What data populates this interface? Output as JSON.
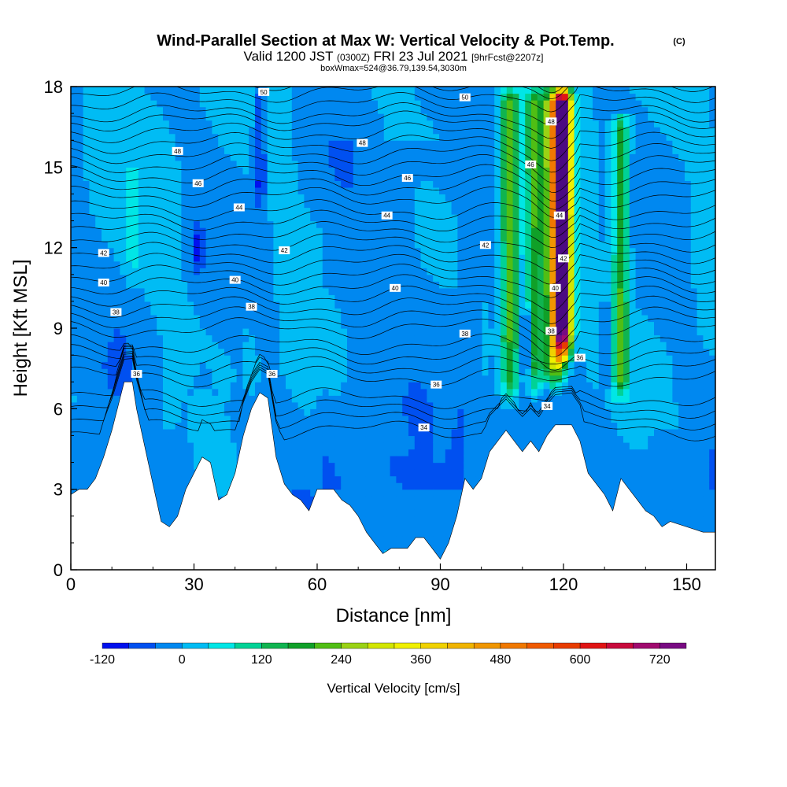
{
  "header": {
    "title": "Wind-Parallel Section at Max W: Vertical Velocity & Pot.Temp.",
    "copyright": "(C)",
    "valid_main": "Valid 1200 JST",
    "valid_z": "(0300Z)",
    "valid_date": "FRI 23 Jul 2021",
    "forecast": "[9hrFcst@2207z]",
    "box_info": "boxWmax=524@36.79,139.54,3030m"
  },
  "chart_data": {
    "type": "heatmap",
    "xlabel": "Distance [nm]",
    "ylabel": "Height [Kft MSL]",
    "xlim": [
      0,
      157
    ],
    "ylim": [
      0,
      18
    ],
    "x_ticks": [
      0,
      30,
      60,
      90,
      120,
      150
    ],
    "y_ticks": [
      0,
      3,
      6,
      9,
      12,
      15,
      18
    ],
    "colorbar": {
      "label": "Vertical Velocity [cm/s]",
      "tick_values": [
        -120,
        0,
        120,
        240,
        360,
        480,
        600,
        720
      ],
      "tick_labels": [
        "-120",
        "0",
        "120",
        "240",
        "360",
        "480",
        "600",
        "720"
      ],
      "levels": [
        -120,
        -80,
        -40,
        0,
        40,
        80,
        120,
        160,
        200,
        240,
        280,
        320,
        360,
        400,
        440,
        480,
        520,
        560,
        600,
        640,
        680,
        720,
        760
      ],
      "colors": [
        "#0010ee",
        "#0050f0",
        "#0088f0",
        "#00bcf4",
        "#00e6e6",
        "#00d296",
        "#10b450",
        "#10a028",
        "#50be14",
        "#9ad214",
        "#d2e600",
        "#f0f000",
        "#f0d200",
        "#f0b400",
        "#f09600",
        "#f07800",
        "#f05a00",
        "#e83c00",
        "#e01414",
        "#c80a3c",
        "#a00a6e",
        "#780a82",
        "#4b0a82"
      ]
    },
    "terrain_kft": [
      [
        0,
        2.8
      ],
      [
        2,
        3.0
      ],
      [
        4,
        3.0
      ],
      [
        6,
        3.4
      ],
      [
        8,
        4.2
      ],
      [
        10,
        5.2
      ],
      [
        12,
        6.4
      ],
      [
        13,
        7.0
      ],
      [
        15,
        7.0
      ],
      [
        16,
        6.0
      ],
      [
        18,
        4.6
      ],
      [
        20,
        3.2
      ],
      [
        22,
        1.8
      ],
      [
        24,
        1.6
      ],
      [
        26,
        2.0
      ],
      [
        28,
        3.0
      ],
      [
        30,
        3.6
      ],
      [
        32,
        4.2
      ],
      [
        34,
        4.0
      ],
      [
        36,
        2.6
      ],
      [
        38,
        2.8
      ],
      [
        40,
        3.6
      ],
      [
        42,
        5.0
      ],
      [
        44,
        6.0
      ],
      [
        46,
        6.6
      ],
      [
        48,
        6.4
      ],
      [
        50,
        4.2
      ],
      [
        52,
        3.2
      ],
      [
        54,
        2.8
      ],
      [
        56,
        2.6
      ],
      [
        58,
        2.2
      ],
      [
        60,
        3.0
      ],
      [
        62,
        3.0
      ],
      [
        64,
        3.0
      ],
      [
        66,
        2.6
      ],
      [
        68,
        2.4
      ],
      [
        70,
        2.0
      ],
      [
        72,
        1.4
      ],
      [
        74,
        1.0
      ],
      [
        76,
        0.6
      ],
      [
        78,
        0.8
      ],
      [
        82,
        0.8
      ],
      [
        84,
        1.2
      ],
      [
        86,
        1.2
      ],
      [
        88,
        0.8
      ],
      [
        90,
        0.4
      ],
      [
        92,
        1.0
      ],
      [
        94,
        2.0
      ],
      [
        96,
        3.4
      ],
      [
        98,
        3.0
      ],
      [
        100,
        3.4
      ],
      [
        102,
        4.4
      ],
      [
        104,
        4.8
      ],
      [
        106,
        5.2
      ],
      [
        108,
        4.8
      ],
      [
        110,
        4.4
      ],
      [
        112,
        4.8
      ],
      [
        114,
        4.4
      ],
      [
        116,
        5.0
      ],
      [
        118,
        5.4
      ],
      [
        122,
        5.4
      ],
      [
        124,
        4.8
      ],
      [
        126,
        3.6
      ],
      [
        128,
        3.2
      ],
      [
        130,
        2.8
      ],
      [
        132,
        2.2
      ],
      [
        134,
        3.4
      ],
      [
        136,
        3.0
      ],
      [
        138,
        2.6
      ],
      [
        140,
        2.2
      ],
      [
        142,
        2.0
      ],
      [
        144,
        1.6
      ],
      [
        146,
        1.8
      ],
      [
        150,
        1.6
      ],
      [
        154,
        1.4
      ],
      [
        157,
        1.4
      ]
    ],
    "wind_speed_features_cm_s": [
      {
        "x": 107,
        "y_bottom": 6.0,
        "y_top": 18,
        "value": 220,
        "width_nm": 2.2
      },
      {
        "x": 113,
        "y_bottom": 6.2,
        "y_top": 18,
        "value": 200,
        "width_nm": 2.0
      },
      {
        "x": 118,
        "y_bottom": 6.5,
        "y_top": 18,
        "value": 380,
        "width_nm": 2.5
      },
      {
        "x": 120,
        "y_bottom": 7.5,
        "y_top": 18,
        "value": 650,
        "width_nm": 2.0
      },
      {
        "x": 134,
        "y_bottom": 6.0,
        "y_top": 17,
        "value": 200,
        "width_nm": 1.8
      },
      {
        "x": 15,
        "y_bottom": 10.5,
        "y_top": 15,
        "value": 60,
        "width_nm": 1.5
      },
      {
        "x": 44,
        "y_bottom": 6.0,
        "y_top": 9,
        "value": 50,
        "width_nm": 2.0
      },
      {
        "x": 31,
        "y_bottom": 10.5,
        "y_top": 13,
        "value": -80,
        "width_nm": 1.5
      },
      {
        "x": 46,
        "y_bottom": 13,
        "y_top": 18,
        "value": -90,
        "width_nm": 1.5
      },
      {
        "x": 111,
        "y_bottom": 6.5,
        "y_top": 10,
        "value": -100,
        "width_nm": 1.2
      },
      {
        "x": 130,
        "y_bottom": 6.0,
        "y_top": 10,
        "value": -60,
        "width_nm": 1.5
      }
    ],
    "theta_levels": [
      {
        "label": "34",
        "base": 5.2
      },
      {
        "label": "36",
        "base": 7.2
      },
      {
        "label": "38",
        "base": 9.0
      },
      {
        "label": "40",
        "base": 10.6
      },
      {
        "label": "42",
        "base": 12.2
      },
      {
        "label": "44",
        "base": 13.9
      },
      {
        "label": "46",
        "base": 15.5
      },
      {
        "label": "48",
        "base": 17.0
      },
      {
        "label": "50",
        "base": 18.4
      }
    ],
    "contour_labels": [
      {
        "text": "50",
        "x": 47,
        "y": 17.8
      },
      {
        "text": "50",
        "x": 96,
        "y": 17.6
      },
      {
        "text": "48",
        "x": 26,
        "y": 15.6
      },
      {
        "text": "48",
        "x": 71,
        "y": 15.9
      },
      {
        "text": "48",
        "x": 117,
        "y": 16.7
      },
      {
        "text": "46",
        "x": 31,
        "y": 14.4
      },
      {
        "text": "46",
        "x": 82,
        "y": 14.6
      },
      {
        "text": "46",
        "x": 112,
        "y": 15.1
      },
      {
        "text": "44",
        "x": 41,
        "y": 13.5
      },
      {
        "text": "44",
        "x": 77,
        "y": 13.2
      },
      {
        "text": "44",
        "x": 119,
        "y": 13.2
      },
      {
        "text": "42",
        "x": 8,
        "y": 11.8
      },
      {
        "text": "42",
        "x": 52,
        "y": 11.9
      },
      {
        "text": "42",
        "x": 101,
        "y": 12.1
      },
      {
        "text": "42",
        "x": 120,
        "y": 11.6
      },
      {
        "text": "40",
        "x": 8,
        "y": 10.7
      },
      {
        "text": "40",
        "x": 40,
        "y": 10.8
      },
      {
        "text": "40",
        "x": 79,
        "y": 10.5
      },
      {
        "text": "40",
        "x": 118,
        "y": 10.5
      },
      {
        "text": "38",
        "x": 11,
        "y": 9.6
      },
      {
        "text": "38",
        "x": 44,
        "y": 9.8
      },
      {
        "text": "38",
        "x": 96,
        "y": 8.8
      },
      {
        "text": "38",
        "x": 117,
        "y": 8.9
      },
      {
        "text": "36",
        "x": 16,
        "y": 7.3
      },
      {
        "text": "36",
        "x": 49,
        "y": 7.3
      },
      {
        "text": "36",
        "x": 89,
        "y": 6.9
      },
      {
        "text": "36",
        "x": 124,
        "y": 7.9
      },
      {
        "text": "34",
        "x": 86,
        "y": 5.3
      },
      {
        "text": "34",
        "x": 116,
        "y": 6.1
      }
    ]
  }
}
